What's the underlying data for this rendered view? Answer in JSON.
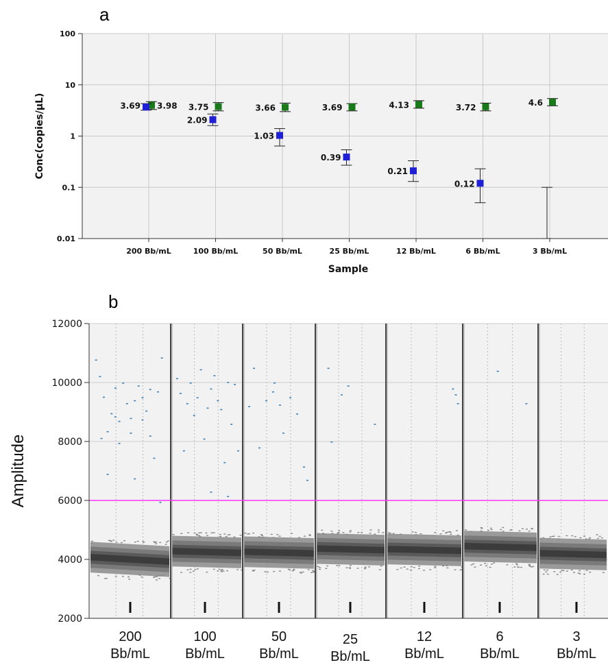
{
  "panels": {
    "a_label": "a",
    "b_label": "b"
  },
  "colors": {
    "ch1": "#1a7a1a",
    "ch2": "#1f1fd6",
    "threshold": "#ff33ff",
    "droplet_neg": "#555555",
    "droplet_pos": "#3a7fb8",
    "plot_bg": "#f2f2f2"
  },
  "chart_data": [
    {
      "id": "a",
      "type": "scatter",
      "xlabel": "Sample",
      "ylabel": "Conc(copies/µL)",
      "yscale": "log",
      "ylim": [
        0.01,
        100
      ],
      "yticks": [
        "0.01",
        "0.1",
        "1",
        "10",
        "100"
      ],
      "grid": true,
      "categories": [
        "200 Bb/mL",
        "100 Bb/mL",
        "50 Bb/mL",
        "25 Bb/mL",
        "12 Bb/mL",
        "6 Bb/mL",
        "3 Bb/mL"
      ],
      "series": [
        {
          "color": "#1a7a1a",
          "values": [
            3.98,
            3.75,
            3.66,
            3.69,
            4.13,
            3.72,
            4.6
          ],
          "labels": [
            "3.98",
            "3.75",
            "3.66",
            "3.69",
            "4.13",
            "3.72",
            "4.6"
          ],
          "err_low": [
            3.3,
            3.1,
            3.0,
            3.1,
            3.5,
            3.1,
            3.9
          ],
          "err_high": [
            4.7,
            4.5,
            4.4,
            4.3,
            4.9,
            4.4,
            5.4
          ]
        },
        {
          "color": "#1f1fd6",
          "values": [
            3.69,
            2.09,
            1.03,
            0.39,
            0.21,
            0.12,
            null
          ],
          "labels": [
            "3.69",
            "2.09",
            "1.03",
            "0.39",
            "0.21",
            "0.12",
            ""
          ],
          "err_low": [
            3.2,
            1.6,
            0.64,
            0.27,
            0.13,
            0.05,
            0.01
          ],
          "err_high": [
            4.3,
            2.7,
            1.4,
            0.54,
            0.33,
            0.23,
            0.1
          ]
        }
      ]
    },
    {
      "id": "b",
      "type": "scatter",
      "ylabel": "Amplitude",
      "ylim": [
        2000,
        12000
      ],
      "yticks": [
        "2000",
        "4000",
        "6000",
        "8000",
        "10000",
        "12000"
      ],
      "threshold": 6000,
      "categories": [
        [
          "200",
          "Bb/mL"
        ],
        [
          "100",
          "Bb/mL"
        ],
        [
          "50",
          "Bb/mL"
        ],
        [
          "25",
          "Bb/mL"
        ],
        [
          "12",
          "Bb/mL"
        ],
        [
          "6",
          "Bb/mL"
        ],
        [
          "3",
          "Bb/mL"
        ]
      ],
      "negative_band_center": [
        4000,
        4250,
        4230,
        4340,
        4320,
        4420,
        4180
      ],
      "positive_droplets": [
        [
          [
            0.05,
            10780
          ],
          [
            0.1,
            10220
          ],
          [
            0.15,
            9520
          ],
          [
            0.2,
            8350
          ],
          [
            0.25,
            8960
          ],
          [
            0.3,
            9830
          ],
          [
            0.35,
            8700
          ],
          [
            0.4,
            10000
          ],
          [
            0.45,
            9300
          ],
          [
            0.5,
            8800
          ],
          [
            0.55,
            9400
          ],
          [
            0.6,
            9900
          ],
          [
            0.65,
            8750
          ],
          [
            0.7,
            9050
          ],
          [
            0.75,
            8200
          ],
          [
            0.8,
            7450
          ],
          [
            0.85,
            9700
          ],
          [
            0.9,
            10850
          ],
          [
            0.2,
            6900
          ],
          [
            0.55,
            6750
          ],
          [
            0.88,
            5950
          ],
          [
            0.12,
            8120
          ],
          [
            0.35,
            7950
          ],
          [
            0.65,
            9500
          ],
          [
            0.75,
            9780
          ],
          [
            0.5,
            8300
          ],
          [
            0.3,
            8850
          ]
        ],
        [
          [
            0.05,
            10150
          ],
          [
            0.1,
            9650
          ],
          [
            0.15,
            7700
          ],
          [
            0.2,
            9300
          ],
          [
            0.25,
            10000
          ],
          [
            0.3,
            8900
          ],
          [
            0.35,
            9500
          ],
          [
            0.4,
            10450
          ],
          [
            0.45,
            8100
          ],
          [
            0.5,
            9150
          ],
          [
            0.55,
            9800
          ],
          [
            0.6,
            10250
          ],
          [
            0.65,
            9400
          ],
          [
            0.7,
            9100
          ],
          [
            0.75,
            7300
          ],
          [
            0.8,
            10020
          ],
          [
            0.85,
            8600
          ],
          [
            0.9,
            9950
          ],
          [
            0.55,
            6300
          ],
          [
            0.8,
            6150
          ],
          [
            0.95,
            7700
          ]
        ],
        [
          [
            0.05,
            9200
          ],
          [
            0.12,
            10500
          ],
          [
            0.2,
            7800
          ],
          [
            0.3,
            9400
          ],
          [
            0.42,
            10000
          ],
          [
            0.5,
            9250
          ],
          [
            0.55,
            8300
          ],
          [
            0.65,
            9500
          ],
          [
            0.75,
            8950
          ],
          [
            0.85,
            7150
          ],
          [
            0.9,
            6700
          ],
          [
            0.4,
            9700
          ]
        ],
        [
          [
            0.15,
            10500
          ],
          [
            0.2,
            8000
          ],
          [
            0.35,
            9600
          ],
          [
            0.45,
            9900
          ],
          [
            0.85,
            8600
          ]
        ],
        [
          [
            0.88,
            9800
          ],
          [
            0.92,
            9600
          ],
          [
            0.95,
            9300
          ]
        ],
        [
          [
            0.45,
            10400
          ],
          [
            0.85,
            9300
          ]
        ],
        []
      ]
    }
  ]
}
